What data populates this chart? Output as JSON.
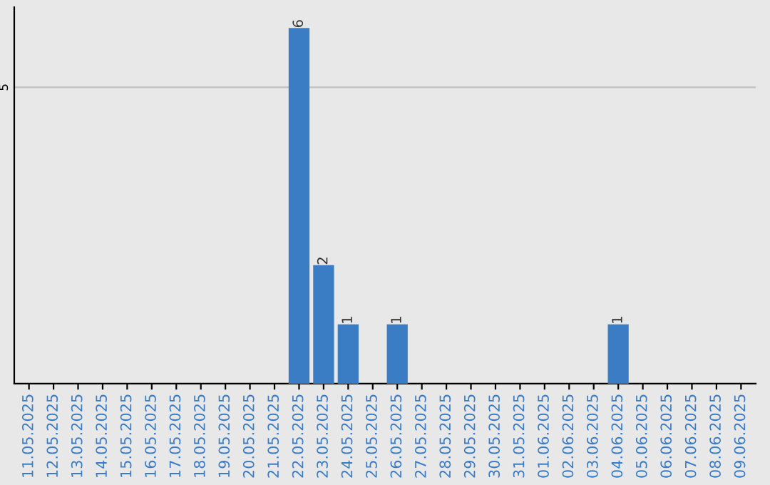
{
  "chart_data": {
    "type": "bar",
    "categories": [
      "11.05.2025",
      "12.05.2025",
      "13.05.2025",
      "14.05.2025",
      "15.05.2025",
      "16.05.2025",
      "17.05.2025",
      "18.05.2025",
      "19.05.2025",
      "20.05.2025",
      "21.05.2025",
      "22.05.2025",
      "23.05.2025",
      "24.05.2025",
      "25.05.2025",
      "26.05.2025",
      "27.05.2025",
      "28.05.2025",
      "29.05.2025",
      "30.05.2025",
      "31.05.2025",
      "01.06.2025",
      "02.06.2025",
      "03.06.2025",
      "04.06.2025",
      "05.06.2025",
      "06.06.2025",
      "07.06.2025",
      "08.06.2025",
      "09.06.2025"
    ],
    "values": [
      0,
      0,
      0,
      0,
      0,
      0,
      0,
      0,
      0,
      0,
      0,
      6,
      2,
      1,
      0,
      1,
      0,
      0,
      0,
      0,
      0,
      0,
      0,
      0,
      1,
      0,
      0,
      0,
      0,
      0
    ],
    "value_labels": [
      null,
      null,
      null,
      null,
      null,
      null,
      null,
      null,
      null,
      null,
      null,
      "6",
      "2",
      "1",
      null,
      "1",
      null,
      null,
      null,
      null,
      null,
      null,
      null,
      null,
      "1",
      null,
      null,
      null,
      null,
      null
    ],
    "color": "#3b7dc4",
    "ylim": [
      0,
      6.35
    ],
    "yticks": [
      5
    ],
    "grid": "y"
  }
}
